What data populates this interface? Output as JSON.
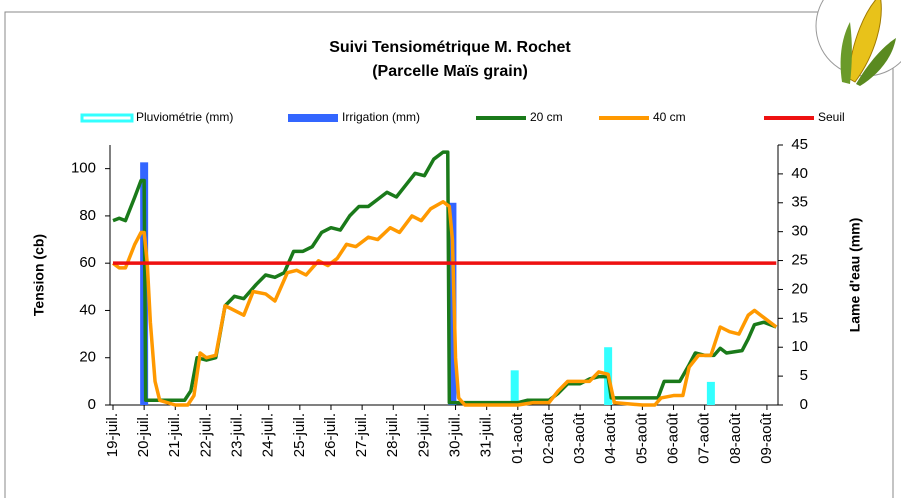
{
  "chart_data": {
    "type": "combo",
    "title": "Suivi Tensiométrique M. Rochet",
    "subtitle": "(Parcelle Maïs grain)",
    "ylabel": "Tension (cb)",
    "y2label": "Lame d'eau (mm)",
    "xlim": [
      0,
      21.3
    ],
    "xticks": [
      {
        "value": 0,
        "label": "19-juil."
      },
      {
        "value": 1,
        "label": "20-juil."
      },
      {
        "value": 2,
        "label": "21-juil."
      },
      {
        "value": 3,
        "label": "22-juil."
      },
      {
        "value": 4,
        "label": "23-juil."
      },
      {
        "value": 5,
        "label": "24-juil."
      },
      {
        "value": 6,
        "label": "25-juil."
      },
      {
        "value": 7,
        "label": "26-juil."
      },
      {
        "value": 8,
        "label": "27-juil."
      },
      {
        "value": 9,
        "label": "28-juil."
      },
      {
        "value": 10,
        "label": "29-juil."
      },
      {
        "value": 11,
        "label": "30-juil."
      },
      {
        "value": 12,
        "label": "31-juil."
      },
      {
        "value": 13,
        "label": "01-août"
      },
      {
        "value": 14,
        "label": "02-août"
      },
      {
        "value": 15,
        "label": "03-août"
      },
      {
        "value": 16,
        "label": "04-août"
      },
      {
        "value": 17,
        "label": "05-août"
      },
      {
        "value": 18,
        "label": "06-août"
      },
      {
        "value": 19,
        "label": "07-août"
      },
      {
        "value": 20,
        "label": "08-août"
      },
      {
        "value": 21,
        "label": "09-août"
      }
    ],
    "ylim": [
      0,
      110
    ],
    "yticks": [
      0,
      20,
      40,
      60,
      80,
      100
    ],
    "y2lim": [
      0,
      45
    ],
    "y2ticks": [
      0,
      5,
      10,
      15,
      20,
      25,
      30,
      35,
      40,
      45
    ],
    "series": [
      {
        "name": "Pluviométrie (mm)",
        "type": "bar",
        "axis": "y2",
        "color": "#33ffff",
        "x": [
          12.9,
          15.9,
          19.2
        ],
        "values": [
          6,
          10,
          4
        ]
      },
      {
        "name": "Irrigation (mm)",
        "type": "bar",
        "axis": "y2",
        "color": "#3366ff",
        "x": [
          1.0,
          10.9
        ],
        "values": [
          42,
          35
        ]
      },
      {
        "name": "20 cm",
        "type": "line",
        "color": "#1a7a1a",
        "x": [
          0,
          0.2,
          0.4,
          0.7,
          0.9,
          1.0,
          1.05,
          1.2,
          1.5,
          2,
          2.3,
          2.5,
          2.7,
          3,
          3.3,
          3.6,
          3.9,
          4.2,
          4.6,
          4.9,
          5.2,
          5.5,
          5.8,
          6.1,
          6.4,
          6.7,
          7,
          7.3,
          7.6,
          7.9,
          8.2,
          8.5,
          8.8,
          9.1,
          9.4,
          9.7,
          10,
          10.3,
          10.6,
          10.75,
          10.8,
          11,
          12,
          13,
          13.3,
          14,
          14.3,
          14.6,
          15,
          15.3,
          15.6,
          15.9,
          16,
          17,
          17.5,
          17.7,
          18.2,
          18.5,
          18.7,
          19,
          19.3,
          19.5,
          19.7,
          20.2,
          20.4,
          20.6,
          20.9,
          21.3
        ],
        "values": [
          78,
          79,
          78,
          88,
          95,
          95,
          2,
          2,
          2,
          2,
          2,
          6,
          20,
          19,
          20,
          42,
          46,
          45,
          51,
          55,
          54,
          56,
          65,
          65,
          67,
          73,
          75,
          74,
          80,
          84,
          84,
          87,
          90,
          88,
          93,
          98,
          97,
          104,
          107,
          107,
          1,
          1,
          1,
          1,
          2,
          2,
          5,
          9,
          9,
          11,
          12,
          12,
          3,
          3,
          3,
          10,
          10,
          17,
          22,
          21,
          21,
          24,
          22,
          23,
          28,
          34,
          35,
          33
        ]
      },
      {
        "name": "40 cm",
        "type": "line",
        "color": "#ff9900",
        "x": [
          0,
          0.2,
          0.4,
          0.7,
          0.9,
          1.0,
          1.1,
          1.2,
          1.35,
          1.5,
          2,
          2.4,
          2.6,
          2.8,
          3,
          3.3,
          3.6,
          3.9,
          4.2,
          4.5,
          4.9,
          5.2,
          5.6,
          5.9,
          6.2,
          6.6,
          6.9,
          7.2,
          7.5,
          7.8,
          8.2,
          8.5,
          8.9,
          9.2,
          9.6,
          9.9,
          10.2,
          10.6,
          10.8,
          10.9,
          11,
          11.1,
          11.3,
          12,
          13,
          13.5,
          14,
          14.3,
          14.6,
          15,
          15.3,
          15.6,
          15.9,
          16.1,
          17,
          17.4,
          17.6,
          18,
          18.3,
          18.5,
          18.8,
          19.2,
          19.5,
          19.8,
          20.1,
          20.4,
          20.6,
          20.9,
          21.3
        ],
        "values": [
          60,
          58,
          58,
          68,
          73,
          73,
          60,
          35,
          10,
          2,
          0,
          0,
          4,
          22,
          20,
          21,
          42,
          40,
          38,
          48,
          47,
          44,
          56,
          57,
          55,
          61,
          59,
          62,
          68,
          67,
          71,
          70,
          75,
          73,
          80,
          78,
          83,
          86,
          84,
          70,
          20,
          3,
          0,
          0,
          0,
          1,
          1,
          6,
          10,
          10,
          10,
          14,
          13,
          1,
          0,
          0,
          3,
          4,
          4,
          16,
          21,
          21,
          33,
          31,
          30,
          38,
          40,
          37,
          33
        ]
      },
      {
        "name": "Seuil",
        "type": "line",
        "color": "#ee1111",
        "x": [
          0,
          21.3
        ],
        "values": [
          60,
          60
        ]
      }
    ]
  }
}
